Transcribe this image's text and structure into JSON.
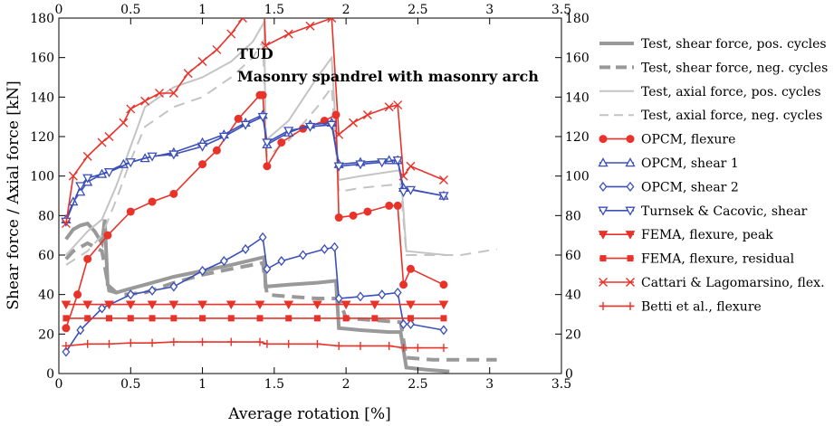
{
  "chart_data": {
    "type": "line",
    "title": "",
    "annotation": {
      "line1": "TUD",
      "line2": "Masonry spandrel with masonry arch"
    },
    "xlabel": "Average rotation [%]",
    "ylabel": "Shear force / Axial force [kN]",
    "xlim": [
      0,
      3.5
    ],
    "ylim": [
      0,
      180
    ],
    "x_ticks": [
      "0",
      "0.5",
      "1",
      "1.5",
      "2",
      "2.5",
      "3",
      "3.5"
    ],
    "y_ticks": [
      "0",
      "20",
      "40",
      "60",
      "80",
      "100",
      "120",
      "140",
      "160",
      "180"
    ],
    "grid": false,
    "legend_position": "right-outside",
    "series": [
      {
        "name": "Test, shear force, pos. cycles",
        "color": "#999999",
        "dash": "solid",
        "width": 4,
        "marker": "none",
        "points": [
          [
            0.05,
            68
          ],
          [
            0.1,
            73
          ],
          [
            0.15,
            75
          ],
          [
            0.2,
            76
          ],
          [
            0.25,
            72
          ],
          [
            0.3,
            66
          ],
          [
            0.32,
            78
          ],
          [
            0.34,
            45
          ],
          [
            0.4,
            41
          ],
          [
            0.5,
            43
          ],
          [
            0.6,
            45
          ],
          [
            0.8,
            49
          ],
          [
            1.0,
            52
          ],
          [
            1.2,
            55
          ],
          [
            1.43,
            59
          ],
          [
            1.44,
            44
          ],
          [
            1.6,
            45
          ],
          [
            1.8,
            46
          ],
          [
            1.93,
            47
          ],
          [
            1.95,
            23
          ],
          [
            2.1,
            22
          ],
          [
            2.3,
            21
          ],
          [
            2.38,
            21
          ],
          [
            2.42,
            3
          ],
          [
            2.55,
            2
          ],
          [
            2.72,
            1
          ]
        ]
      },
      {
        "name": "Test, shear force, neg. cycles",
        "color": "#999999",
        "dash": "dashed",
        "width": 4,
        "marker": "none",
        "points": [
          [
            0.05,
            58
          ],
          [
            0.1,
            62
          ],
          [
            0.2,
            66
          ],
          [
            0.3,
            62
          ],
          [
            0.35,
            42
          ],
          [
            0.45,
            40
          ],
          [
            0.6,
            41
          ],
          [
            0.8,
            46
          ],
          [
            1.0,
            50
          ],
          [
            1.2,
            53
          ],
          [
            1.42,
            56
          ],
          [
            1.45,
            40
          ],
          [
            1.6,
            39
          ],
          [
            1.8,
            38
          ],
          [
            1.95,
            38
          ],
          [
            2.0,
            28
          ],
          [
            2.2,
            27
          ],
          [
            2.38,
            26
          ],
          [
            2.42,
            8
          ],
          [
            2.6,
            7
          ],
          [
            2.8,
            7
          ],
          [
            3.05,
            7
          ]
        ]
      },
      {
        "name": "Test, axial force, pos. cycles",
        "color": "#c4c4c4",
        "dash": "solid",
        "width": 2,
        "marker": "none",
        "points": [
          [
            0.05,
            60
          ],
          [
            0.2,
            72
          ],
          [
            0.3,
            78
          ],
          [
            0.4,
            95
          ],
          [
            0.5,
            115
          ],
          [
            0.6,
            135
          ],
          [
            0.8,
            145
          ],
          [
            1.0,
            150
          ],
          [
            1.2,
            158
          ],
          [
            1.35,
            168
          ],
          [
            1.43,
            178
          ],
          [
            1.44,
            118
          ],
          [
            1.6,
            128
          ],
          [
            1.8,
            150
          ],
          [
            1.9,
            160
          ],
          [
            1.95,
            98
          ],
          [
            2.1,
            100
          ],
          [
            2.38,
            103
          ],
          [
            2.42,
            62
          ],
          [
            2.7,
            60
          ]
        ]
      },
      {
        "name": "Test, axial force, neg. cycles",
        "color": "#c4c4c4",
        "dash": "dashed",
        "width": 2,
        "marker": "none",
        "points": [
          [
            0.05,
            55
          ],
          [
            0.2,
            62
          ],
          [
            0.3,
            70
          ],
          [
            0.4,
            88
          ],
          [
            0.5,
            108
          ],
          [
            0.6,
            125
          ],
          [
            0.8,
            135
          ],
          [
            1.0,
            140
          ],
          [
            1.2,
            150
          ],
          [
            1.35,
            160
          ],
          [
            1.42,
            168
          ],
          [
            1.45,
            110
          ],
          [
            1.6,
            118
          ],
          [
            1.8,
            135
          ],
          [
            1.9,
            145
          ],
          [
            1.95,
            92
          ],
          [
            2.1,
            94
          ],
          [
            2.38,
            96
          ],
          [
            2.42,
            60
          ],
          [
            2.8,
            60
          ],
          [
            3.05,
            63
          ]
        ]
      },
      {
        "name": "OPCM, flexure",
        "color": "#e8332a",
        "dash": "solid",
        "width": 1.6,
        "marker": "circle",
        "points": [
          [
            0.05,
            23
          ],
          [
            0.13,
            40
          ],
          [
            0.2,
            58
          ],
          [
            0.34,
            70
          ],
          [
            0.5,
            82
          ],
          [
            0.65,
            87
          ],
          [
            0.8,
            91
          ],
          [
            1.0,
            106
          ],
          [
            1.1,
            113
          ],
          [
            1.25,
            129
          ],
          [
            1.4,
            141
          ],
          [
            1.42,
            141
          ],
          [
            1.45,
            105
          ],
          [
            1.55,
            117
          ],
          [
            1.7,
            124
          ],
          [
            1.85,
            128
          ],
          [
            1.93,
            131
          ],
          [
            1.95,
            79
          ],
          [
            2.05,
            80
          ],
          [
            2.15,
            82
          ],
          [
            2.3,
            85
          ],
          [
            2.36,
            85
          ],
          [
            2.4,
            45
          ],
          [
            2.45,
            53
          ],
          [
            2.68,
            45
          ]
        ]
      },
      {
        "name": "OPCM, shear 1",
        "color": "#3b4fb8",
        "dash": "solid",
        "width": 1.6,
        "marker": "triangle-up",
        "points": [
          [
            0.05,
            78
          ],
          [
            0.1,
            87
          ],
          [
            0.15,
            92
          ],
          [
            0.2,
            97
          ],
          [
            0.3,
            101
          ],
          [
            0.45,
            106
          ],
          [
            0.6,
            109
          ],
          [
            0.8,
            112
          ],
          [
            1.0,
            117
          ],
          [
            1.15,
            121
          ],
          [
            1.3,
            127
          ],
          [
            1.42,
            131
          ],
          [
            1.45,
            116
          ],
          [
            1.6,
            122
          ],
          [
            1.75,
            126
          ],
          [
            1.9,
            127
          ],
          [
            1.95,
            106
          ],
          [
            2.1,
            107
          ],
          [
            2.3,
            108
          ],
          [
            2.36,
            108
          ],
          [
            2.4,
            94
          ],
          [
            2.68,
            90
          ]
        ]
      },
      {
        "name": "OPCM, shear 2",
        "color": "#3b4fb8",
        "dash": "solid",
        "width": 1.6,
        "marker": "diamond",
        "points": [
          [
            0.05,
            11
          ],
          [
            0.15,
            22
          ],
          [
            0.3,
            33
          ],
          [
            0.5,
            40
          ],
          [
            0.65,
            42
          ],
          [
            0.8,
            44
          ],
          [
            1.0,
            52
          ],
          [
            1.15,
            57
          ],
          [
            1.3,
            63
          ],
          [
            1.42,
            69
          ],
          [
            1.45,
            53
          ],
          [
            1.55,
            57
          ],
          [
            1.7,
            60
          ],
          [
            1.85,
            63
          ],
          [
            1.92,
            64
          ],
          [
            1.95,
            38
          ],
          [
            2.1,
            39
          ],
          [
            2.25,
            40
          ],
          [
            2.36,
            41
          ],
          [
            2.4,
            25
          ],
          [
            2.45,
            25
          ],
          [
            2.68,
            22
          ]
        ]
      },
      {
        "name": "Turnsek & Cacovic, shear",
        "color": "#3b4fb8",
        "dash": "solid",
        "width": 1.6,
        "marker": "triangle-down",
        "points": [
          [
            0.05,
            77
          ],
          [
            0.15,
            95
          ],
          [
            0.2,
            99
          ],
          [
            0.35,
            102
          ],
          [
            0.5,
            107
          ],
          [
            0.65,
            110
          ],
          [
            0.8,
            111
          ],
          [
            1.0,
            115
          ],
          [
            1.15,
            120
          ],
          [
            1.3,
            126
          ],
          [
            1.42,
            130
          ],
          [
            1.45,
            117
          ],
          [
            1.6,
            123
          ],
          [
            1.75,
            125
          ],
          [
            1.9,
            126
          ],
          [
            1.95,
            105
          ],
          [
            2.1,
            106
          ],
          [
            2.25,
            107
          ],
          [
            2.36,
            108
          ],
          [
            2.4,
            92
          ],
          [
            2.45,
            93
          ],
          [
            2.68,
            90
          ]
        ]
      },
      {
        "name": "FEMA, flexure, peak",
        "color": "#e8332a",
        "dash": "solid",
        "width": 1.6,
        "marker": "triangle-down-filled",
        "points": [
          [
            0.05,
            35
          ],
          [
            0.2,
            35
          ],
          [
            0.35,
            35
          ],
          [
            0.5,
            35
          ],
          [
            0.65,
            35
          ],
          [
            0.8,
            35
          ],
          [
            1.0,
            35
          ],
          [
            1.2,
            35
          ],
          [
            1.4,
            35
          ],
          [
            1.6,
            35
          ],
          [
            1.8,
            35
          ],
          [
            2.0,
            35
          ],
          [
            2.2,
            35
          ],
          [
            2.45,
            35
          ],
          [
            2.68,
            35
          ]
        ]
      },
      {
        "name": "FEMA, flexure, residual",
        "color": "#e8332a",
        "dash": "solid",
        "width": 1.6,
        "marker": "square",
        "points": [
          [
            0.05,
            28
          ],
          [
            0.2,
            28
          ],
          [
            0.35,
            28
          ],
          [
            0.5,
            28
          ],
          [
            0.65,
            28
          ],
          [
            0.8,
            28
          ],
          [
            1.0,
            28
          ],
          [
            1.2,
            28
          ],
          [
            1.4,
            28
          ],
          [
            1.6,
            28
          ],
          [
            1.8,
            28
          ],
          [
            2.0,
            28
          ],
          [
            2.2,
            28
          ],
          [
            2.45,
            28
          ],
          [
            2.68,
            28
          ]
        ]
      },
      {
        "name": "Cattari & Lagomarsino, flex.",
        "color": "#e8332a",
        "dash": "solid",
        "width": 1.6,
        "marker": "x",
        "points": [
          [
            0.05,
            76
          ],
          [
            0.1,
            100
          ],
          [
            0.2,
            110
          ],
          [
            0.3,
            117
          ],
          [
            0.35,
            120
          ],
          [
            0.45,
            127
          ],
          [
            0.5,
            134
          ],
          [
            0.6,
            138
          ],
          [
            0.7,
            142
          ],
          [
            0.8,
            142
          ],
          [
            0.9,
            152
          ],
          [
            1.0,
            158
          ],
          [
            1.1,
            164
          ],
          [
            1.2,
            172
          ],
          [
            1.28,
            180
          ],
          [
            1.43,
            184
          ],
          [
            1.44,
            166
          ],
          [
            1.6,
            172
          ],
          [
            1.75,
            176
          ],
          [
            1.9,
            180
          ],
          [
            1.95,
            121
          ],
          [
            2.05,
            127
          ],
          [
            2.15,
            131
          ],
          [
            2.3,
            135
          ],
          [
            2.36,
            136
          ],
          [
            2.4,
            100
          ],
          [
            2.45,
            105
          ],
          [
            2.68,
            98
          ]
        ]
      },
      {
        "name": "Betti et al., flexure",
        "color": "#e8332a",
        "dash": "solid",
        "width": 1.6,
        "marker": "plus",
        "points": [
          [
            0.05,
            14
          ],
          [
            0.2,
            15
          ],
          [
            0.35,
            15
          ],
          [
            0.5,
            15.5
          ],
          [
            0.65,
            15.5
          ],
          [
            0.8,
            16
          ],
          [
            1.0,
            16
          ],
          [
            1.2,
            16
          ],
          [
            1.4,
            16
          ],
          [
            1.45,
            15
          ],
          [
            1.6,
            15
          ],
          [
            1.8,
            15
          ],
          [
            1.95,
            14
          ],
          [
            2.1,
            14
          ],
          [
            2.3,
            14
          ],
          [
            2.4,
            13
          ],
          [
            2.5,
            13
          ],
          [
            2.68,
            13
          ]
        ]
      }
    ]
  }
}
